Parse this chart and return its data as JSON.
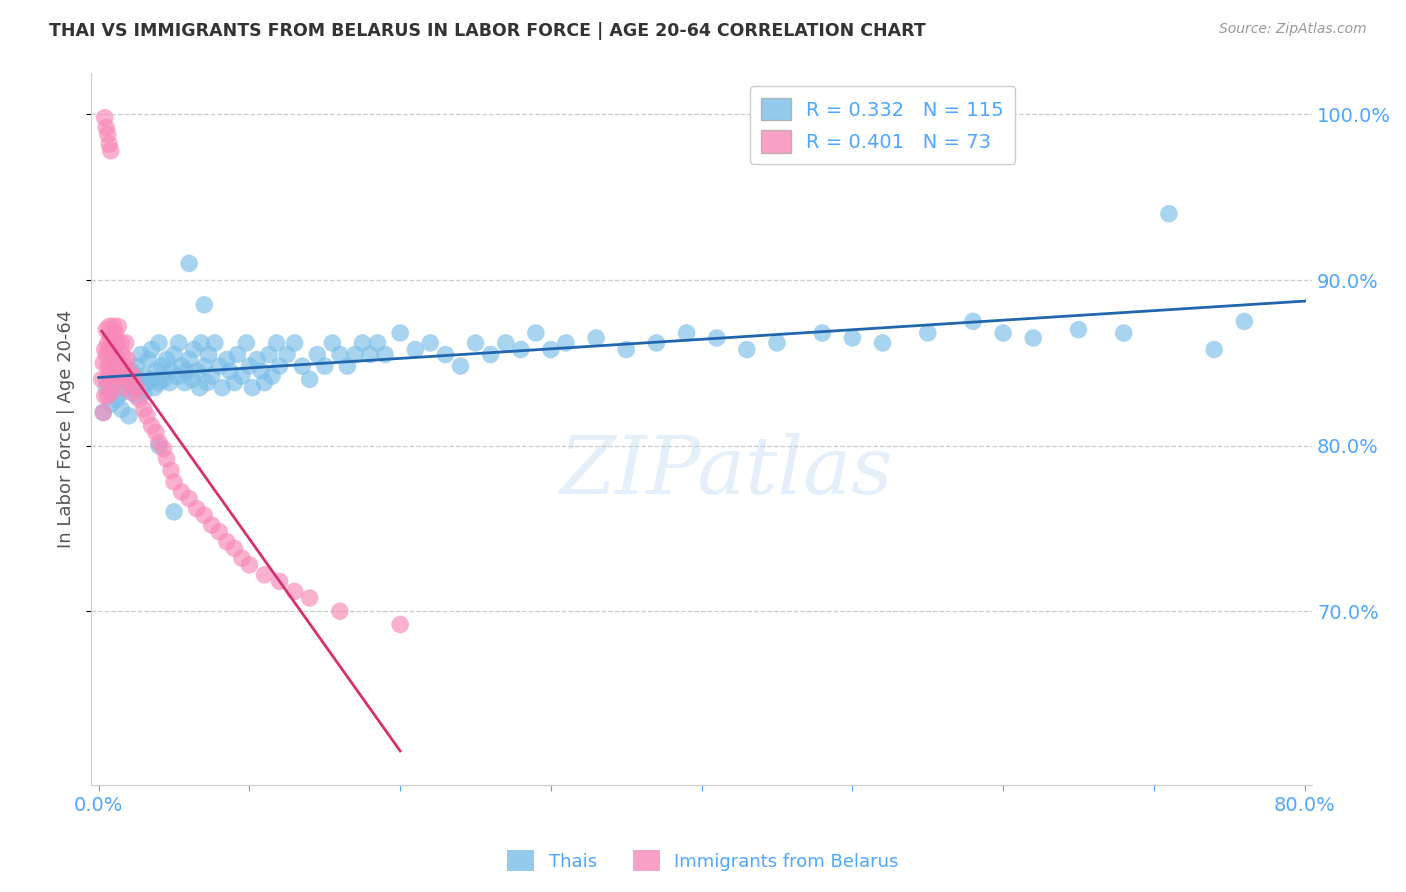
{
  "title": "THAI VS IMMIGRANTS FROM BELARUS IN LABOR FORCE | AGE 20-64 CORRELATION CHART",
  "source": "Source: ZipAtlas.com",
  "ylabel": "In Labor Force | Age 20-64",
  "xlim": [
    -0.005,
    0.805
  ],
  "ylim": [
    0.595,
    1.025
  ],
  "yticks": [
    0.7,
    0.8,
    0.9,
    1.0
  ],
  "ytick_labels": [
    "70.0%",
    "80.0%",
    "90.0%",
    "100.0%"
  ],
  "xticks": [
    0.0,
    0.1,
    0.2,
    0.3,
    0.4,
    0.5,
    0.6,
    0.7,
    0.8
  ],
  "xtick_labels": [
    "0.0%",
    "",
    "",
    "",
    "",
    "",
    "",
    "",
    "80.0%"
  ],
  "blue_R": 0.332,
  "blue_N": 115,
  "pink_R": 0.401,
  "pink_N": 73,
  "blue_color": "#7abde8",
  "pink_color": "#f888b8",
  "blue_line_color": "#2166ac",
  "pink_line_color": "#d63070",
  "legend_blue_label": "Thais",
  "legend_pink_label": "Immigrants from Belarus",
  "watermark": "ZIPatlas",
  "title_color": "#333333",
  "axis_color": "#4da6ff",
  "blue_scatter_x": [
    0.003,
    0.005,
    0.008,
    0.01,
    0.012,
    0.015,
    0.015,
    0.017,
    0.018,
    0.02,
    0.02,
    0.022,
    0.023,
    0.025,
    0.025,
    0.027,
    0.028,
    0.03,
    0.03,
    0.032,
    0.033,
    0.035,
    0.035,
    0.037,
    0.038,
    0.04,
    0.04,
    0.042,
    0.043,
    0.045,
    0.047,
    0.048,
    0.05,
    0.052,
    0.053,
    0.055,
    0.057,
    0.058,
    0.06,
    0.062,
    0.063,
    0.065,
    0.067,
    0.068,
    0.07,
    0.072,
    0.073,
    0.075,
    0.077,
    0.08,
    0.082,
    0.085,
    0.087,
    0.09,
    0.092,
    0.095,
    0.098,
    0.1,
    0.102,
    0.105,
    0.108,
    0.11,
    0.113,
    0.115,
    0.118,
    0.12,
    0.125,
    0.13,
    0.135,
    0.14,
    0.145,
    0.15,
    0.155,
    0.16,
    0.165,
    0.17,
    0.175,
    0.18,
    0.185,
    0.19,
    0.2,
    0.21,
    0.22,
    0.23,
    0.24,
    0.25,
    0.26,
    0.27,
    0.28,
    0.29,
    0.3,
    0.31,
    0.33,
    0.35,
    0.37,
    0.39,
    0.41,
    0.43,
    0.45,
    0.48,
    0.5,
    0.52,
    0.55,
    0.58,
    0.6,
    0.62,
    0.65,
    0.68,
    0.71,
    0.74,
    0.76,
    0.04,
    0.05,
    0.06,
    0.07
  ],
  "blue_scatter_y": [
    0.82,
    0.835,
    0.825,
    0.84,
    0.828,
    0.822,
    0.832,
    0.838,
    0.845,
    0.838,
    0.818,
    0.845,
    0.835,
    0.83,
    0.848,
    0.84,
    0.855,
    0.832,
    0.842,
    0.838,
    0.852,
    0.84,
    0.858,
    0.835,
    0.845,
    0.838,
    0.862,
    0.848,
    0.84,
    0.852,
    0.838,
    0.845,
    0.855,
    0.842,
    0.862,
    0.848,
    0.838,
    0.845,
    0.852,
    0.84,
    0.858,
    0.845,
    0.835,
    0.862,
    0.848,
    0.838,
    0.855,
    0.842,
    0.862,
    0.848,
    0.835,
    0.852,
    0.845,
    0.838,
    0.855,
    0.842,
    0.862,
    0.848,
    0.835,
    0.852,
    0.845,
    0.838,
    0.855,
    0.842,
    0.862,
    0.848,
    0.855,
    0.862,
    0.848,
    0.84,
    0.855,
    0.848,
    0.862,
    0.855,
    0.848,
    0.855,
    0.862,
    0.855,
    0.862,
    0.855,
    0.868,
    0.858,
    0.862,
    0.855,
    0.848,
    0.862,
    0.855,
    0.862,
    0.858,
    0.868,
    0.858,
    0.862,
    0.865,
    0.858,
    0.862,
    0.868,
    0.865,
    0.858,
    0.862,
    0.868,
    0.865,
    0.862,
    0.868,
    0.875,
    0.868,
    0.865,
    0.87,
    0.868,
    0.94,
    0.858,
    0.875,
    0.8,
    0.76,
    0.91,
    0.885
  ],
  "pink_scatter_x": [
    0.002,
    0.003,
    0.003,
    0.004,
    0.004,
    0.005,
    0.005,
    0.005,
    0.006,
    0.006,
    0.006,
    0.007,
    0.007,
    0.007,
    0.008,
    0.008,
    0.008,
    0.009,
    0.009,
    0.01,
    0.01,
    0.01,
    0.011,
    0.011,
    0.012,
    0.012,
    0.013,
    0.013,
    0.014,
    0.015,
    0.015,
    0.016,
    0.016,
    0.017,
    0.018,
    0.018,
    0.019,
    0.02,
    0.021,
    0.022,
    0.023,
    0.025,
    0.027,
    0.03,
    0.032,
    0.035,
    0.038,
    0.04,
    0.043,
    0.045,
    0.048,
    0.05,
    0.055,
    0.06,
    0.065,
    0.07,
    0.075,
    0.08,
    0.085,
    0.09,
    0.095,
    0.1,
    0.11,
    0.12,
    0.13,
    0.14,
    0.16,
    0.2,
    0.004,
    0.005,
    0.006,
    0.007,
    0.008
  ],
  "pink_scatter_y": [
    0.84,
    0.85,
    0.82,
    0.858,
    0.83,
    0.87,
    0.855,
    0.84,
    0.862,
    0.848,
    0.83,
    0.872,
    0.858,
    0.842,
    0.865,
    0.848,
    0.832,
    0.858,
    0.842,
    0.872,
    0.855,
    0.838,
    0.868,
    0.848,
    0.862,
    0.842,
    0.872,
    0.852,
    0.845,
    0.862,
    0.842,
    0.855,
    0.835,
    0.848,
    0.862,
    0.842,
    0.852,
    0.845,
    0.838,
    0.832,
    0.842,
    0.835,
    0.828,
    0.822,
    0.818,
    0.812,
    0.808,
    0.802,
    0.798,
    0.792,
    0.785,
    0.778,
    0.772,
    0.768,
    0.762,
    0.758,
    0.752,
    0.748,
    0.742,
    0.738,
    0.732,
    0.728,
    0.722,
    0.718,
    0.712,
    0.708,
    0.7,
    0.692,
    0.998,
    0.992,
    0.988,
    0.982,
    0.978
  ]
}
